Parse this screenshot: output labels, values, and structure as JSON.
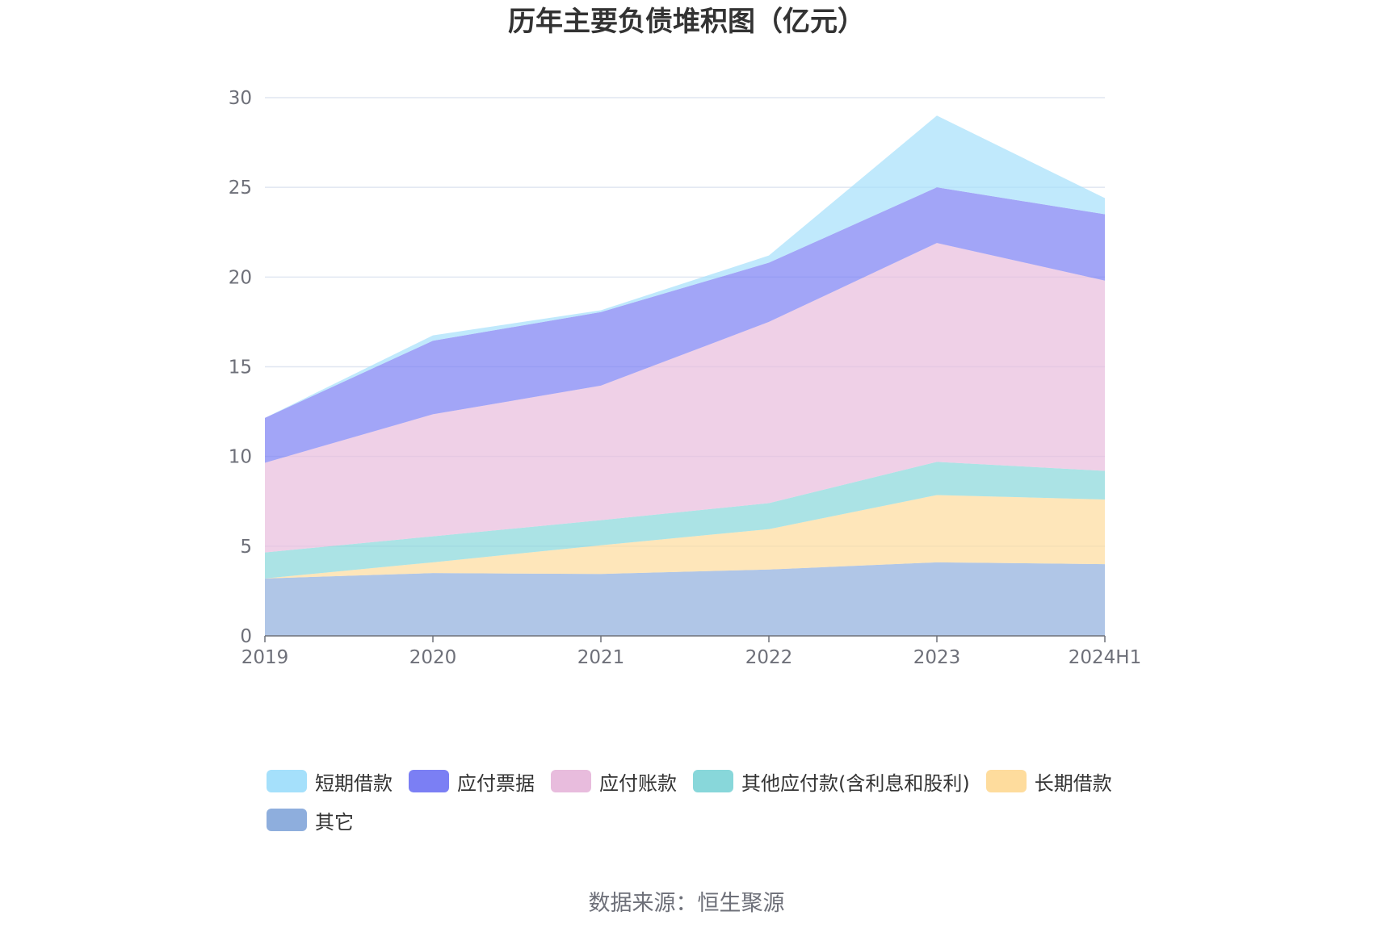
{
  "chart_data": {
    "type": "area",
    "stacked": true,
    "title": "历年主要负债堆积图（亿元）",
    "categories": [
      "2019",
      "2020",
      "2021",
      "2022",
      "2023",
      "2024H1"
    ],
    "ylim": [
      0,
      30
    ],
    "yticks": [
      0,
      5,
      10,
      15,
      20,
      25,
      30
    ],
    "grid": true,
    "legend_position": "bottom",
    "series": [
      {
        "name": "其它",
        "color": "#8eaedd",
        "values": [
          3.2,
          3.5,
          3.45,
          3.7,
          4.1,
          4.0
        ]
      },
      {
        "name": "长期借款",
        "color": "#fedc9d",
        "values": [
          0.0,
          0.6,
          1.6,
          2.25,
          3.75,
          3.6
        ]
      },
      {
        "name": "其他应付款(含利息和股利)",
        "color": "#88d7da",
        "values": [
          1.45,
          1.45,
          1.4,
          1.45,
          1.85,
          1.6
        ]
      },
      {
        "name": "应付账款",
        "color": "#e8bcdd",
        "values": [
          5.0,
          6.8,
          7.5,
          10.1,
          12.2,
          10.6
        ]
      },
      {
        "name": "应付票据",
        "color": "#7b7ff4",
        "values": [
          2.5,
          4.1,
          4.1,
          3.3,
          3.1,
          3.7
        ]
      },
      {
        "name": "短期借款",
        "color": "#a5e0fb",
        "values": [
          0.0,
          0.3,
          0.1,
          0.4,
          4.0,
          0.9
        ]
      }
    ]
  },
  "legend_items": [
    {
      "name": "短期借款",
      "color": "#a5e0fb"
    },
    {
      "name": "应付票据",
      "color": "#7b7ff4"
    },
    {
      "name": "应付账款",
      "color": "#e8bcdd"
    },
    {
      "name": "其他应付款(含利息和股利)",
      "color": "#88d7da"
    },
    {
      "name": "长期借款",
      "color": "#fedc9d"
    },
    {
      "name": "其它",
      "color": "#8eaedd"
    }
  ],
  "source": "数据来源：恒生聚源"
}
